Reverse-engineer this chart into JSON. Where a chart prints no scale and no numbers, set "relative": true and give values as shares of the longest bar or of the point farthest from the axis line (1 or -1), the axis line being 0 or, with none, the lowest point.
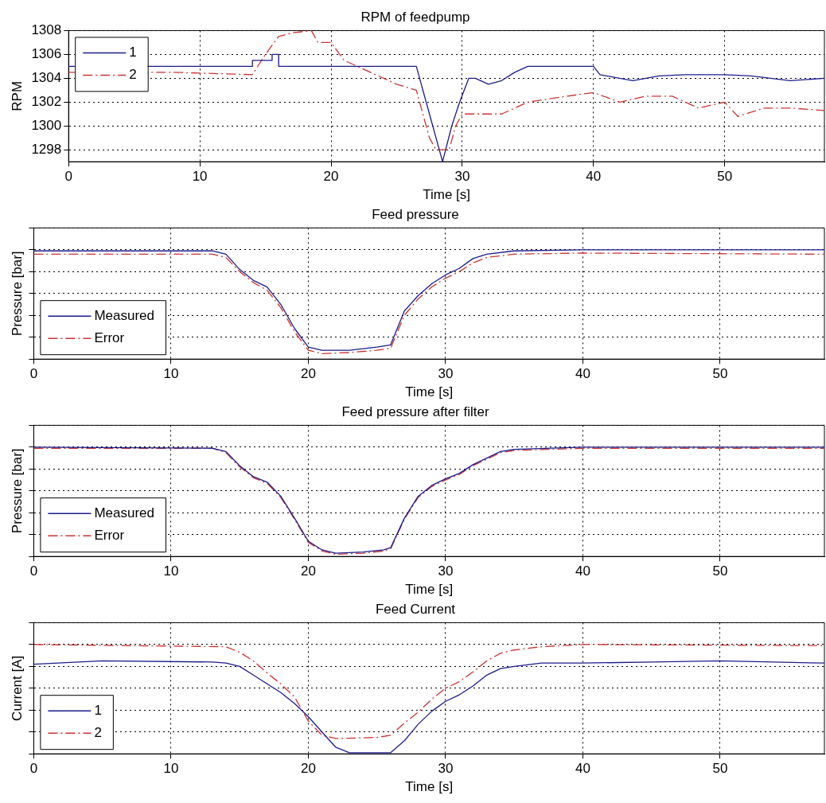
{
  "chart_data": [
    {
      "type": "line",
      "title": "RPM of feedpump",
      "xlabel": "Time [s]",
      "ylabel": "RPM",
      "xlim": [
        0,
        57.6
      ],
      "xticks": [
        0,
        10,
        20,
        30,
        40,
        50
      ],
      "ylim": [
        1297,
        1308
      ],
      "yticks": [
        1298,
        1300,
        1302,
        1304,
        1306,
        1308
      ],
      "grid": true,
      "legend": "top left",
      "marker": "none",
      "series": [
        {
          "name": "1",
          "color": "#1c1c8c",
          "line_style": "solid",
          "x": [
            0,
            14,
            14.01,
            15.5,
            15.51,
            16,
            16.01,
            26.5,
            27.5,
            28.5,
            29.2,
            29.8,
            30.5,
            31,
            32,
            33,
            34,
            35,
            40,
            40.5,
            41,
            43,
            45,
            47,
            50,
            52,
            55,
            57.6
          ],
          "values": [
            1305,
            1305,
            1305.5,
            1305.5,
            1306,
            1306,
            1305,
            1305,
            1301,
            1297,
            1300,
            1302,
            1304,
            1304,
            1303.5,
            1303.8,
            1304.5,
            1305,
            1305,
            1304.3,
            1304.2,
            1303.8,
            1304.2,
            1304.3,
            1304.3,
            1304.2,
            1303.8,
            1304
          ]
        },
        {
          "name": "2",
          "color": "#cc3333",
          "line_style": "dashed",
          "x": [
            0,
            8,
            14,
            15,
            16,
            17,
            18.5,
            19,
            20,
            21,
            23,
            25,
            26.5,
            27.5,
            28,
            29,
            29.5,
            30,
            33,
            35,
            38,
            40,
            42,
            44,
            46,
            48,
            50,
            51,
            53,
            55,
            57.6
          ],
          "values": [
            1304.5,
            1304.5,
            1304.3,
            1306,
            1307.5,
            1307.8,
            1308,
            1307,
            1307,
            1305.5,
            1304.5,
            1303.5,
            1303,
            1299,
            1298,
            1298,
            1300,
            1301,
            1301,
            1302,
            1302.5,
            1302.8,
            1302,
            1302.5,
            1302.5,
            1301.5,
            1302,
            1300.8,
            1301.5,
            1301.5,
            1301.3
          ]
        }
      ]
    },
    {
      "type": "line",
      "title": "Feed pressure",
      "xlabel": "Time [s]",
      "ylabel": "Pressure [bar]",
      "xlim": [
        0,
        57.6
      ],
      "xticks": [
        0,
        10,
        20,
        30,
        40,
        50
      ],
      "relative": true,
      "grid": true,
      "legend": "bottom left",
      "marker": "none",
      "series": [
        {
          "name": "Measured",
          "color": "#1c1c8c",
          "line_style": "solid",
          "x": [
            0,
            13,
            14,
            15,
            16,
            17,
            18,
            19,
            20,
            21,
            23,
            25,
            26,
            27,
            28,
            29,
            30,
            31,
            32,
            33,
            35,
            40,
            57.6
          ],
          "values": [
            0.99,
            0.99,
            0.96,
            0.82,
            0.72,
            0.66,
            0.5,
            0.28,
            0.11,
            0.08,
            0.08,
            0.11,
            0.13,
            0.44,
            0.58,
            0.69,
            0.77,
            0.83,
            0.92,
            0.96,
            0.99,
            1,
            1
          ]
        },
        {
          "name": "Error",
          "color": "#cc3333",
          "line_style": "dashed",
          "x": [
            0,
            13,
            14,
            15,
            16,
            17,
            18,
            19,
            20,
            21,
            23,
            25,
            26,
            27,
            28,
            29,
            30,
            31,
            32,
            33,
            35,
            40,
            57.6
          ],
          "values": [
            0.96,
            0.96,
            0.93,
            0.8,
            0.7,
            0.63,
            0.47,
            0.25,
            0.08,
            0.05,
            0.06,
            0.08,
            0.1,
            0.4,
            0.55,
            0.66,
            0.74,
            0.8,
            0.88,
            0.93,
            0.96,
            0.97,
            0.96
          ]
        }
      ]
    },
    {
      "type": "line",
      "title": "Feed pressure after filter",
      "xlabel": "Time [s]",
      "ylabel": "Pressure [bar]",
      "xlim": [
        0,
        57.6
      ],
      "xticks": [
        0,
        10,
        20,
        30,
        40,
        50
      ],
      "relative": true,
      "grid": true,
      "legend": "bottom left",
      "marker": "none",
      "series": [
        {
          "name": "Measured",
          "color": "#1c1c8c",
          "line_style": "solid",
          "x": [
            0,
            13,
            14,
            15,
            16,
            17,
            18,
            19,
            20,
            21,
            22,
            24,
            25.5,
            26,
            27,
            28,
            29,
            30,
            31,
            32,
            33,
            34,
            35,
            40,
            57.6
          ],
          "values": [
            1,
            0.99,
            0.96,
            0.83,
            0.73,
            0.68,
            0.55,
            0.35,
            0.14,
            0.06,
            0.03,
            0.04,
            0.06,
            0.08,
            0.35,
            0.55,
            0.65,
            0.71,
            0.76,
            0.84,
            0.9,
            0.96,
            0.98,
            1,
            1
          ]
        },
        {
          "name": "Error",
          "color": "#cc3333",
          "line_style": "dashed",
          "x": [
            0,
            13,
            14,
            15,
            16,
            17,
            18,
            19,
            20,
            21,
            22,
            24,
            25.5,
            26,
            27,
            28,
            29,
            30,
            31,
            32,
            33,
            34,
            35,
            40,
            57.6
          ],
          "values": [
            0.99,
            0.99,
            0.95,
            0.82,
            0.72,
            0.67,
            0.54,
            0.34,
            0.13,
            0.05,
            0.02,
            0.03,
            0.05,
            0.07,
            0.34,
            0.54,
            0.64,
            0.7,
            0.75,
            0.83,
            0.89,
            0.95,
            0.97,
            0.99,
            0.99
          ]
        }
      ]
    },
    {
      "type": "line",
      "title": "Feed Current",
      "xlabel": "Time [s]",
      "ylabel": "Current [A]",
      "xlim": [
        0,
        57.6
      ],
      "xticks": [
        0,
        10,
        20,
        30,
        40,
        50
      ],
      "relative": true,
      "grid": true,
      "legend": "bottom left",
      "marker": "none",
      "series": [
        {
          "name": "1",
          "color": "#1c1c8c",
          "line_style": "solid",
          "x": [
            0,
            5,
            13,
            14,
            15,
            16,
            18,
            19,
            20,
            21,
            22,
            23,
            26,
            27,
            28,
            29,
            30,
            31,
            32,
            33,
            34,
            35,
            37,
            40,
            45,
            50,
            57.6
          ],
          "values": [
            0.82,
            0.85,
            0.84,
            0.83,
            0.8,
            0.72,
            0.56,
            0.46,
            0.34,
            0.2,
            0.06,
            0.01,
            0.01,
            0.12,
            0.27,
            0.39,
            0.48,
            0.54,
            0.62,
            0.72,
            0.78,
            0.8,
            0.83,
            0.83,
            0.84,
            0.85,
            0.83
          ]
        },
        {
          "name": "2",
          "color": "#cc3333",
          "line_style": "dashed",
          "x": [
            0,
            14,
            15,
            16,
            17,
            18,
            19,
            20,
            21,
            22,
            25,
            26,
            27,
            28,
            29,
            30,
            31,
            32,
            33,
            34,
            35,
            37,
            40,
            57.6
          ],
          "values": [
            1,
            0.98,
            0.93,
            0.85,
            0.74,
            0.64,
            0.52,
            0.3,
            0.17,
            0.14,
            0.15,
            0.17,
            0.28,
            0.38,
            0.5,
            0.6,
            0.66,
            0.75,
            0.85,
            0.92,
            0.95,
            0.98,
            1,
            0.99
          ]
        }
      ]
    }
  ]
}
